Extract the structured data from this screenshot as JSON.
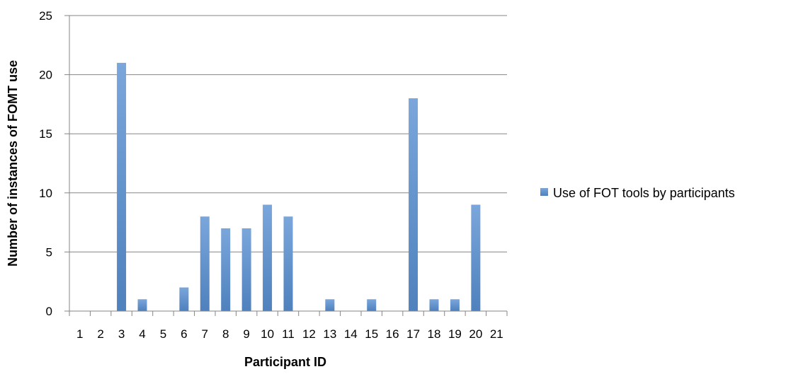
{
  "chart_data": {
    "type": "bar",
    "categories": [
      "1",
      "2",
      "3",
      "4",
      "5",
      "6",
      "7",
      "8",
      "9",
      "10",
      "11",
      "12",
      "13",
      "14",
      "15",
      "16",
      "17",
      "18",
      "19",
      "20",
      "21"
    ],
    "series": [
      {
        "name": "Use of FOT tools by participants",
        "values": [
          0,
          0,
          21,
          1,
          0,
          2,
          8,
          7,
          7,
          9,
          8,
          0,
          1,
          0,
          1,
          0,
          18,
          1,
          1,
          9,
          0
        ]
      }
    ],
    "xlabel": "Participant ID",
    "ylabel": "Number of instances of FOMT use",
    "ylim": [
      0,
      25
    ],
    "yticks": [
      0,
      5,
      10,
      15,
      20,
      25
    ],
    "grid": true,
    "legend_position": "right",
    "colors": {
      "bar": "#4f81bd",
      "bar_light": "#7aa6db",
      "grid": "#868686",
      "axis": "#868686"
    }
  }
}
